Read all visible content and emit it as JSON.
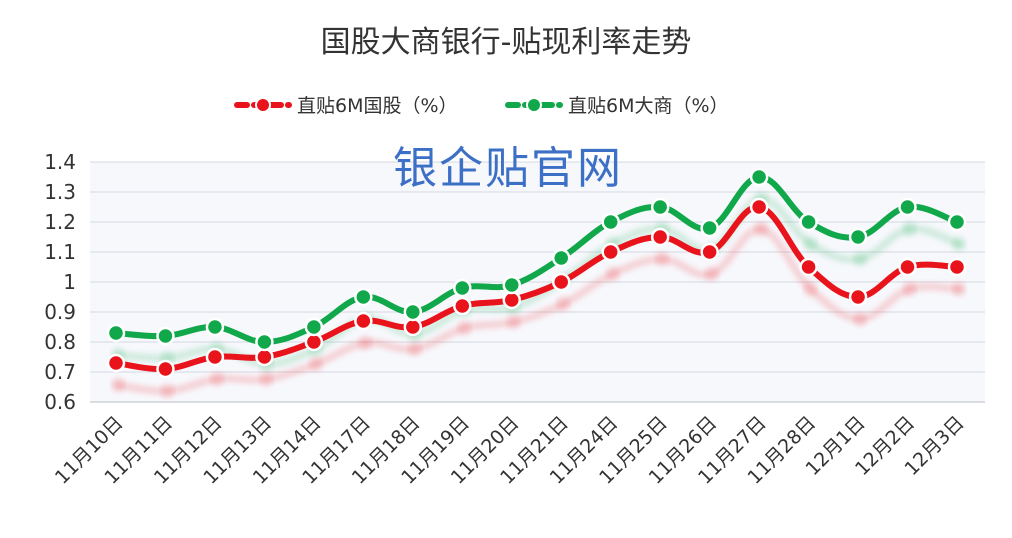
{
  "chart_data": {
    "type": "line",
    "title": "国股大商银行-贴现利率走势",
    "watermark": "银企贴官网",
    "categories": [
      "11月10日",
      "11月11日",
      "11月12日",
      "11月13日",
      "11月14日",
      "11月17日",
      "11月18日",
      "11月19日",
      "11月20日",
      "11月21日",
      "11月24日",
      "11月25日",
      "11月26日",
      "11月27日",
      "11月28日",
      "12月1日",
      "12月2日",
      "12月3日"
    ],
    "series": [
      {
        "name": "直贴6M国股（%）",
        "color": "#e8131b",
        "values": [
          0.73,
          0.71,
          0.75,
          0.75,
          0.8,
          0.87,
          0.85,
          0.92,
          0.94,
          1.0,
          1.1,
          1.15,
          1.1,
          1.25,
          1.05,
          0.95,
          1.05,
          1.05
        ]
      },
      {
        "name": "直贴6M大商（%）",
        "color": "#10a84a",
        "values": [
          0.83,
          0.82,
          0.85,
          0.8,
          0.85,
          0.95,
          0.9,
          0.98,
          0.99,
          1.08,
          1.2,
          1.25,
          1.18,
          1.35,
          1.2,
          1.15,
          1.25,
          1.2
        ]
      }
    ],
    "yticks": [
      "1.4",
      "1.3",
      "1.2",
      "1.1",
      "1",
      "0.9",
      "0.8",
      "0.7",
      "0.6"
    ],
    "ylim": [
      0.6,
      1.4
    ],
    "grid": true,
    "legend_position": "top-center"
  }
}
